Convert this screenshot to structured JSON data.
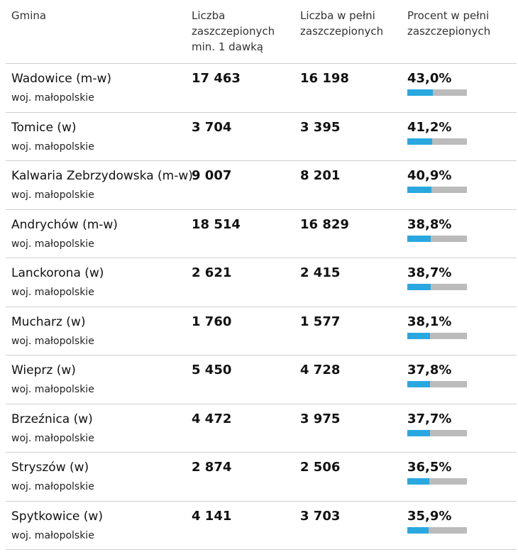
{
  "colors": {
    "bar_fill": "#29a8e0",
    "bar_track": "#bbbbbb",
    "divider": "#cfcfcf"
  },
  "headers": {
    "gmina": "Gmina",
    "dose1": "Liczba\nzaszczepionych\nmin. 1 dawką",
    "full": "Liczba w pełni\nzaszczepionych",
    "pct": "Procent w pełni\nzaszczepionych"
  },
  "rows": [
    {
      "name": "Wadowice (m-w)",
      "region": "woj. małopolskie",
      "dose1": "17 463",
      "full": "16 198",
      "pct_label": "43,0%",
      "pct": 43.0
    },
    {
      "name": "Tomice (w)",
      "region": "woj. małopolskie",
      "dose1": "3 704",
      "full": "3 395",
      "pct_label": "41,2%",
      "pct": 41.2
    },
    {
      "name": "Kalwaria Zebrzydowska (m-w)",
      "region": "woj. małopolskie",
      "dose1": "9 007",
      "full": "8 201",
      "pct_label": "40,9%",
      "pct": 40.9
    },
    {
      "name": "Andrychów (m-w)",
      "region": "woj. małopolskie",
      "dose1": "18 514",
      "full": "16 829",
      "pct_label": "38,8%",
      "pct": 38.8
    },
    {
      "name": "Lanckorona (w)",
      "region": "woj. małopolskie",
      "dose1": "2 621",
      "full": "2 415",
      "pct_label": "38,7%",
      "pct": 38.7
    },
    {
      "name": "Mucharz (w)",
      "region": "woj. małopolskie",
      "dose1": "1 760",
      "full": "1 577",
      "pct_label": "38,1%",
      "pct": 38.1
    },
    {
      "name": "Wieprz (w)",
      "region": "woj. małopolskie",
      "dose1": "5 450",
      "full": "4 728",
      "pct_label": "37,8%",
      "pct": 37.8
    },
    {
      "name": "Brzeźnica (w)",
      "region": "woj. małopolskie",
      "dose1": "4 472",
      "full": "3 975",
      "pct_label": "37,7%",
      "pct": 37.7
    },
    {
      "name": "Stryszów (w)",
      "region": "woj. małopolskie",
      "dose1": "2 874",
      "full": "2 506",
      "pct_label": "36,5%",
      "pct": 36.5
    },
    {
      "name": "Spytkowice (w)",
      "region": "woj. małopolskie",
      "dose1": "4 141",
      "full": "3 703",
      "pct_label": "35,9%",
      "pct": 35.9
    }
  ]
}
